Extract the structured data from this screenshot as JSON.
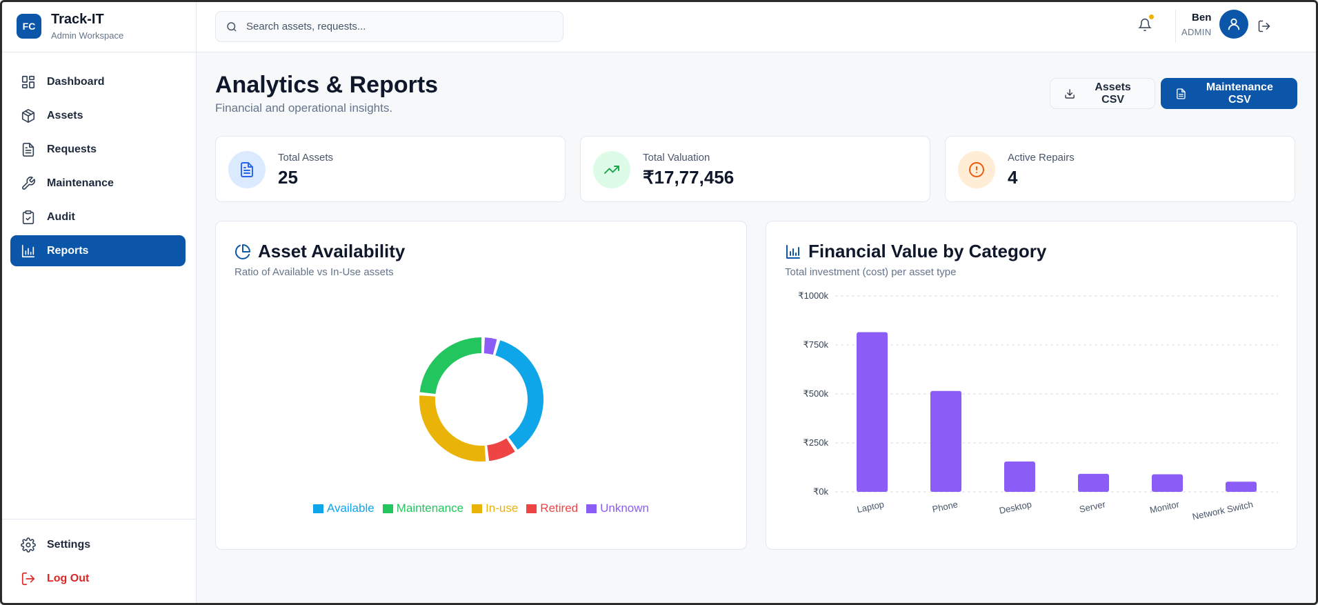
{
  "brand": {
    "badge": "FC",
    "name": "Track-IT",
    "subtitle": "Admin Workspace"
  },
  "sidebar": {
    "items": [
      {
        "label": "Dashboard",
        "icon": "dashboard-icon"
      },
      {
        "label": "Assets",
        "icon": "box-icon"
      },
      {
        "label": "Requests",
        "icon": "document-icon"
      },
      {
        "label": "Maintenance",
        "icon": "wrench-icon"
      },
      {
        "label": "Audit",
        "icon": "clipboard-check-icon"
      },
      {
        "label": "Reports",
        "icon": "bar-chart-icon",
        "active": true
      }
    ],
    "bottom": [
      {
        "label": "Settings",
        "icon": "gear-icon"
      },
      {
        "label": "Log Out",
        "icon": "logout-icon"
      }
    ]
  },
  "header": {
    "search_placeholder": "Search assets, requests...",
    "user_name": "Ben",
    "user_role": "ADMIN"
  },
  "page": {
    "title": "Analytics & Reports",
    "subtitle": "Financial and operational insights."
  },
  "actions": {
    "assets_csv": "Assets CSV",
    "maintenance_csv": "Maintenance CSV"
  },
  "stats": [
    {
      "label": "Total Assets",
      "value": "25",
      "icon": "file-icon",
      "color": "#2563eb",
      "bg": "#dbeafe"
    },
    {
      "label": "Total Valuation",
      "value": "₹17,77,456",
      "icon": "trending-up-icon",
      "color": "#16a34a",
      "bg": "#dcfce7"
    },
    {
      "label": "Active Repairs",
      "value": "4",
      "icon": "alert-circle-icon",
      "color": "#ea580c",
      "bg": "#ffedd5"
    }
  ],
  "availability": {
    "title": "Asset Availability",
    "subtitle": "Ratio of Available vs In-Use assets"
  },
  "financial": {
    "title": "Financial Value by Category",
    "subtitle": "Total investment (cost) per asset type"
  },
  "chart_data": [
    {
      "type": "pie",
      "title": "Asset Availability",
      "labels": [
        "Available",
        "Retired",
        "In-use",
        "Maintenance",
        "Unknown"
      ],
      "values": [
        9,
        2,
        7,
        6,
        1
      ],
      "colors": [
        "#0ea5e9",
        "#ef4444",
        "#eab308",
        "#22c55e",
        "#8b5cf6"
      ],
      "legend_order": [
        "Available",
        "Maintenance",
        "In-use",
        "Retired",
        "Unknown"
      ],
      "legend_colors": [
        "#0ea5e9",
        "#22c55e",
        "#eab308",
        "#ef4444",
        "#8b5cf6"
      ],
      "legend": "bottom"
    },
    {
      "type": "bar",
      "title": "Financial Value by Category",
      "categories": [
        "Laptop",
        "Phone",
        "Desktop",
        "Server",
        "Monitor",
        "Network Switch"
      ],
      "values": [
        815000,
        515000,
        155000,
        92000,
        90000,
        52000
      ],
      "ylim": [
        0,
        1000000
      ],
      "yticks": [
        0,
        250000,
        500000,
        750000,
        1000000
      ],
      "ytick_labels": [
        "₹0k",
        "₹250k",
        "₹500k",
        "₹750k",
        "₹1000k"
      ],
      "bar_color": "#8b5cf6",
      "grid": true
    }
  ]
}
